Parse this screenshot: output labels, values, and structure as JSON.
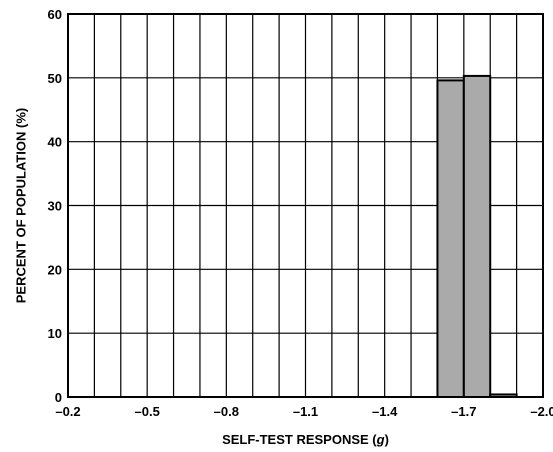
{
  "chart_data": {
    "type": "bar",
    "title": "",
    "xlabel_prefix": "SELF-TEST RESPONSE (",
    "xlabel_unit": "g",
    "xlabel_suffix": ")",
    "ylabel": "PERCENT OF POPULATION (%)",
    "xlim": [
      -0.2,
      -2.0
    ],
    "ylim": [
      0,
      60
    ],
    "x_bin_width": 0.1,
    "x_ticks": [
      -0.2,
      -0.5,
      -0.8,
      -1.1,
      -1.4,
      -1.7,
      -2.0
    ],
    "x_tick_labels": [
      "–0.2",
      "–0.5",
      "–0.8",
      "–1.1",
      "–1.4",
      "–1.7",
      "–2.0"
    ],
    "y_ticks": [
      0,
      10,
      20,
      30,
      40,
      50,
      60
    ],
    "y_tick_labels": [
      "0",
      "10",
      "20",
      "30",
      "40",
      "50",
      "60"
    ],
    "grid": true,
    "bar_color": "#aaaaaa",
    "bars": [
      {
        "x_start": -1.6,
        "x_end": -1.7,
        "value": 49.6
      },
      {
        "x_start": -1.7,
        "x_end": -1.8,
        "value": 50.3
      },
      {
        "x_start": -1.8,
        "x_end": -1.9,
        "value": 0.4
      }
    ]
  }
}
